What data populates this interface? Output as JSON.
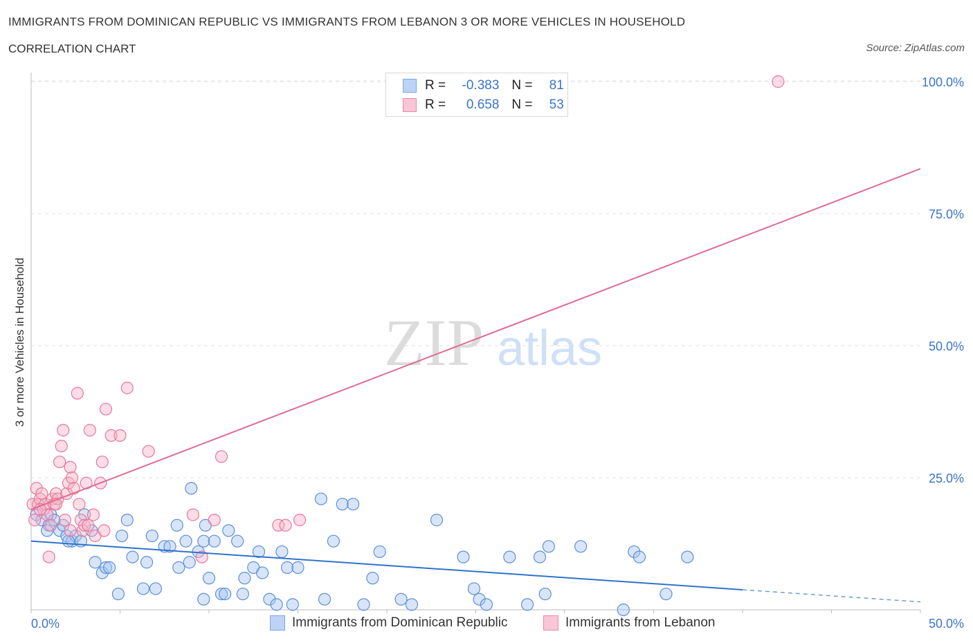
{
  "title": "IMMIGRANTS FROM DOMINICAN REPUBLIC VS IMMIGRANTS FROM LEBANON 3 OR MORE VEHICLES IN HOUSEHOLD",
  "subtitle": "CORRELATION CHART",
  "source": "Source: ZipAtlas.com",
  "watermark": {
    "zip": "ZIP",
    "atlas": "atlas"
  },
  "legend": {
    "rows": [
      {
        "r_label": "R =",
        "r_value": "-0.383",
        "n_label": "N =",
        "n_value": "81",
        "color": "#7aa6e6",
        "fill": "#bcd3f5"
      },
      {
        "r_label": "R =",
        "r_value": "0.658",
        "n_label": "N =",
        "n_value": "53",
        "color": "#eb8aa8",
        "fill": "#f8c6d6"
      }
    ]
  },
  "chart_data": {
    "type": "scatter",
    "title": "IMMIGRANTS FROM DOMINICAN REPUBLIC VS IMMIGRANTS FROM LEBANON 3 OR MORE VEHICLES IN HOUSEHOLD",
    "xlabel": "",
    "ylabel": "3 or more Vehicles in Household",
    "xlim": [
      0,
      50
    ],
    "ylim": [
      0,
      100
    ],
    "x_tick_labels": [
      "0.0%",
      "50.0%"
    ],
    "y_tick_labels": [
      {
        "value": 25,
        "label": "25.0%"
      },
      {
        "value": 50,
        "label": "50.0%"
      },
      {
        "value": 75,
        "label": "75.0%"
      },
      {
        "value": 100,
        "label": "100.0%"
      }
    ],
    "grid": true,
    "legend_position": "top-center",
    "series": [
      {
        "name": "Immigrants from Dominican Republic",
        "color": "#5b8fd9",
        "fill": "#a9c6ef",
        "trend": {
          "x0": 0,
          "y0": 13,
          "x1": 40,
          "y1": 3.8,
          "dashed_to_x": 50,
          "dashed_to_y": 1.5,
          "line_color": "#2f72cc"
        },
        "points": [
          [
            0.3,
            18
          ],
          [
            0.6,
            17
          ],
          [
            1.1,
            18
          ],
          [
            1.0,
            16
          ],
          [
            1.6,
            15
          ],
          [
            1.8,
            16
          ],
          [
            2.0,
            14
          ],
          [
            2.3,
            13
          ],
          [
            2.5,
            14
          ],
          [
            2.8,
            13
          ],
          [
            3.0,
            18
          ],
          [
            3.4,
            15
          ],
          [
            3.6,
            9
          ],
          [
            4.0,
            7
          ],
          [
            4.2,
            8
          ],
          [
            4.4,
            8
          ],
          [
            4.9,
            3
          ],
          [
            5.1,
            14
          ],
          [
            5.4,
            17
          ],
          [
            5.7,
            10
          ],
          [
            6.3,
            4
          ],
          [
            6.5,
            9
          ],
          [
            6.8,
            14
          ],
          [
            7.0,
            4
          ],
          [
            7.5,
            12
          ],
          [
            7.8,
            12
          ],
          [
            8.2,
            16
          ],
          [
            8.3,
            8
          ],
          [
            8.7,
            13
          ],
          [
            8.9,
            9
          ],
          [
            9.0,
            23
          ],
          [
            9.4,
            11
          ],
          [
            9.7,
            2
          ],
          [
            9.7,
            13
          ],
          [
            9.8,
            16
          ],
          [
            10.0,
            6
          ],
          [
            10.3,
            13
          ],
          [
            10.7,
            3
          ],
          [
            10.9,
            3
          ],
          [
            11.1,
            15
          ],
          [
            11.6,
            13
          ],
          [
            11.9,
            3
          ],
          [
            12.0,
            6
          ],
          [
            12.5,
            8
          ],
          [
            12.8,
            11
          ],
          [
            13.0,
            7
          ],
          [
            13.4,
            2
          ],
          [
            13.8,
            1
          ],
          [
            14.1,
            11
          ],
          [
            14.4,
            8
          ],
          [
            14.7,
            1
          ],
          [
            15.0,
            8
          ],
          [
            16.3,
            21
          ],
          [
            16.5,
            2
          ],
          [
            17.0,
            13
          ],
          [
            17.5,
            20
          ],
          [
            18.1,
            20
          ],
          [
            18.7,
            1
          ],
          [
            19.2,
            6
          ],
          [
            19.6,
            11
          ],
          [
            20.8,
            2
          ],
          [
            21.4,
            1
          ],
          [
            22.8,
            17
          ],
          [
            24.3,
            10
          ],
          [
            24.9,
            4
          ],
          [
            25.2,
            2
          ],
          [
            25.6,
            1
          ],
          [
            26.9,
            10
          ],
          [
            27.9,
            1
          ],
          [
            28.6,
            10
          ],
          [
            28.9,
            3
          ],
          [
            29.1,
            12
          ],
          [
            30.9,
            12
          ],
          [
            33.3,
            0
          ],
          [
            33.9,
            11
          ],
          [
            34.2,
            10
          ],
          [
            35.7,
            3
          ],
          [
            36.9,
            10
          ],
          [
            1.3,
            17
          ],
          [
            2.1,
            13
          ],
          [
            0.9,
            15
          ]
        ]
      },
      {
        "name": "Immigrants from Lebanon",
        "color": "#e8779b",
        "fill": "#f5b3c8",
        "trend": {
          "x0": 0,
          "y0": 19,
          "x1": 50,
          "y1": 83.5,
          "line_color": "#e06b92"
        },
        "points": [
          [
            0.1,
            20
          ],
          [
            0.2,
            17
          ],
          [
            0.3,
            23
          ],
          [
            0.4,
            20
          ],
          [
            0.5,
            21
          ],
          [
            0.6,
            22
          ],
          [
            0.7,
            19
          ],
          [
            0.8,
            20
          ],
          [
            0.9,
            18
          ],
          [
            1.0,
            10
          ],
          [
            1.1,
            16
          ],
          [
            1.2,
            21
          ],
          [
            1.3,
            20
          ],
          [
            1.4,
            22
          ],
          [
            1.5,
            21
          ],
          [
            1.6,
            28
          ],
          [
            1.7,
            31
          ],
          [
            1.8,
            34
          ],
          [
            1.9,
            17
          ],
          [
            2.0,
            22
          ],
          [
            2.1,
            24
          ],
          [
            2.2,
            27
          ],
          [
            2.3,
            25
          ],
          [
            2.4,
            23
          ],
          [
            2.2,
            15
          ],
          [
            2.6,
            41
          ],
          [
            2.8,
            17
          ],
          [
            2.9,
            15
          ],
          [
            3.0,
            16
          ],
          [
            3.1,
            24
          ],
          [
            3.2,
            16
          ],
          [
            3.3,
            34
          ],
          [
            3.5,
            18
          ],
          [
            3.6,
            14
          ],
          [
            3.9,
            24
          ],
          [
            4.0,
            28
          ],
          [
            4.1,
            15
          ],
          [
            4.2,
            38
          ],
          [
            4.5,
            33
          ],
          [
            5.0,
            33
          ],
          [
            5.4,
            42
          ],
          [
            6.6,
            30
          ],
          [
            9.1,
            18
          ],
          [
            9.6,
            10
          ],
          [
            10.3,
            17
          ],
          [
            10.7,
            29
          ],
          [
            13.9,
            16
          ],
          [
            14.3,
            16
          ],
          [
            15.1,
            17
          ],
          [
            42.0,
            100
          ],
          [
            1.4,
            20
          ],
          [
            0.5,
            19
          ],
          [
            2.7,
            20
          ]
        ]
      }
    ]
  },
  "bottom_legend": [
    {
      "label": "Immigrants from Dominican Republic",
      "color": "#7aa6e6",
      "fill": "#bcd3f5"
    },
    {
      "label": "Immigrants from Lebanon",
      "color": "#eb8aa8",
      "fill": "#f8c6d6"
    }
  ]
}
